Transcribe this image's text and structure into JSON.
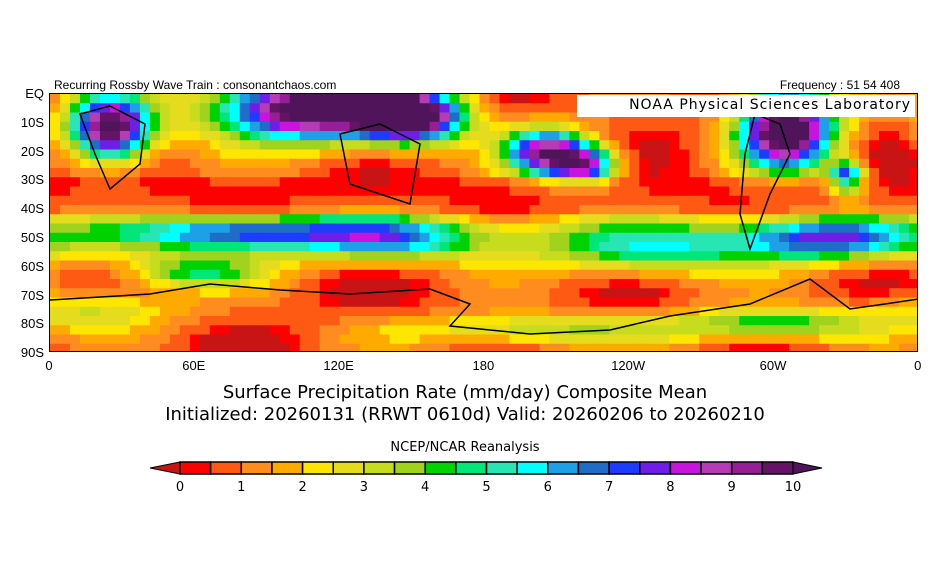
{
  "header": {
    "left": "Recurring Rossby Wave Train : consonantchaos.com",
    "right": "Frequency : 51 54 408",
    "lab": "NOAA Physical Sciences Laboratory"
  },
  "chart_data": {
    "type": "heatmap",
    "title": "Surface Precipitation Rate (mm/day) Composite Mean",
    "subtitle": "Initialized: 20260131 (RRWT 0610d) Valid: 20260206 to 20260210",
    "source": "NCEP/NCAR Reanalysis",
    "units": "mm/day",
    "lat_ticks": [
      "EQ",
      "10S",
      "20S",
      "30S",
      "40S",
      "50S",
      "60S",
      "70S",
      "80S",
      "90S"
    ],
    "lon_ticks": [
      "0",
      "60E",
      "120E",
      "180",
      "120W",
      "60W",
      "0"
    ],
    "lat_range": [
      -90,
      0
    ],
    "lon_range": [
      0,
      360
    ],
    "colorbar": {
      "labels": [
        "0",
        "1",
        "2",
        "3",
        "4",
        "5",
        "6",
        "7",
        "8",
        "9",
        "10"
      ],
      "min": 0,
      "max": 10,
      "step": 0.5,
      "extend": "both",
      "colors": [
        "#ff0000",
        "#ff5a14",
        "#ff8c1e",
        "#ffaa00",
        "#ffe600",
        "#e6dc1e",
        "#c8dc1e",
        "#a0d21e",
        "#00d200",
        "#00e678",
        "#28e6b4",
        "#00ffff",
        "#1ea0e6",
        "#1e6ec8",
        "#1e3cff",
        "#6e1ee6",
        "#c814dc",
        "#b43cb4",
        "#961e96",
        "#641464"
      ],
      "under": "#c81414",
      "over": "#50145a"
    }
  }
}
